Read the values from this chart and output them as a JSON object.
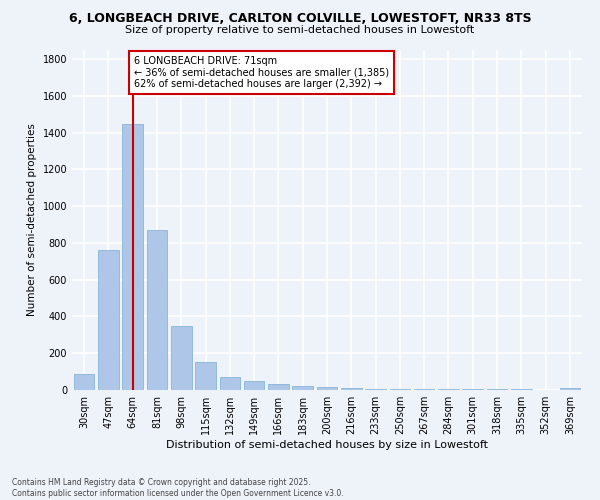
{
  "title_line1": "6, LONGBEACH DRIVE, CARLTON COLVILLE, LOWESTOFT, NR33 8TS",
  "title_line2": "Size of property relative to semi-detached houses in Lowestoft",
  "xlabel": "Distribution of semi-detached houses by size in Lowestoft",
  "ylabel": "Number of semi-detached properties",
  "categories": [
    "30sqm",
    "47sqm",
    "64sqm",
    "81sqm",
    "98sqm",
    "115sqm",
    "132sqm",
    "149sqm",
    "166sqm",
    "183sqm",
    "200sqm",
    "216sqm",
    "233sqm",
    "250sqm",
    "267sqm",
    "284sqm",
    "301sqm",
    "318sqm",
    "335sqm",
    "352sqm",
    "369sqm"
  ],
  "values": [
    85,
    760,
    1450,
    870,
    350,
    150,
    70,
    50,
    30,
    20,
    15,
    10,
    8,
    8,
    6,
    5,
    5,
    4,
    3,
    2,
    12
  ],
  "bar_color": "#aec6e8",
  "bar_edge_color": "#7aafd4",
  "annotation_text": "6 LONGBEACH DRIVE: 71sqm\n← 36% of semi-detached houses are smaller (1,385)\n62% of semi-detached houses are larger (2,392) →",
  "annotation_box_color": "#ffffff",
  "annotation_box_edge": "#cc0000",
  "vline_x": 2.0,
  "vline_color": "#cc0000",
  "background_color": "#eef2f9",
  "grid_color": "#ffffff",
  "ylim": [
    0,
    1850
  ],
  "footer": "Contains HM Land Registry data © Crown copyright and database right 2025.\nContains public sector information licensed under the Open Government Licence v3.0."
}
